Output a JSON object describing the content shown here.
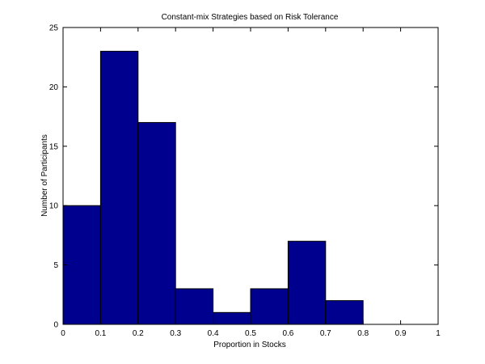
{
  "chart_data": {
    "type": "bar",
    "title": "Constant-mix Strategies based on Risk Tolerance",
    "xlabel": "Proportion in Stocks",
    "ylabel": "Number of Participants",
    "xlim": [
      0,
      1
    ],
    "ylim": [
      0,
      25
    ],
    "x_ticks": [
      "0",
      "0.1",
      "0.2",
      "0.3",
      "0.4",
      "0.5",
      "0.6",
      "0.7",
      "0.8",
      "0.9",
      "1"
    ],
    "y_ticks": [
      "0",
      "5",
      "10",
      "15",
      "20",
      "25"
    ],
    "bins": [
      {
        "start": 0.0,
        "end": 0.1,
        "value": 10
      },
      {
        "start": 0.1,
        "end": 0.2,
        "value": 23
      },
      {
        "start": 0.2,
        "end": 0.3,
        "value": 17
      },
      {
        "start": 0.3,
        "end": 0.4,
        "value": 3
      },
      {
        "start": 0.4,
        "end": 0.5,
        "value": 1
      },
      {
        "start": 0.5,
        "end": 0.6,
        "value": 3
      },
      {
        "start": 0.6,
        "end": 0.7,
        "value": 7
      },
      {
        "start": 0.7,
        "end": 0.8,
        "value": 2
      }
    ],
    "bar_color": "#00008f",
    "grid": false,
    "legend": "none"
  }
}
